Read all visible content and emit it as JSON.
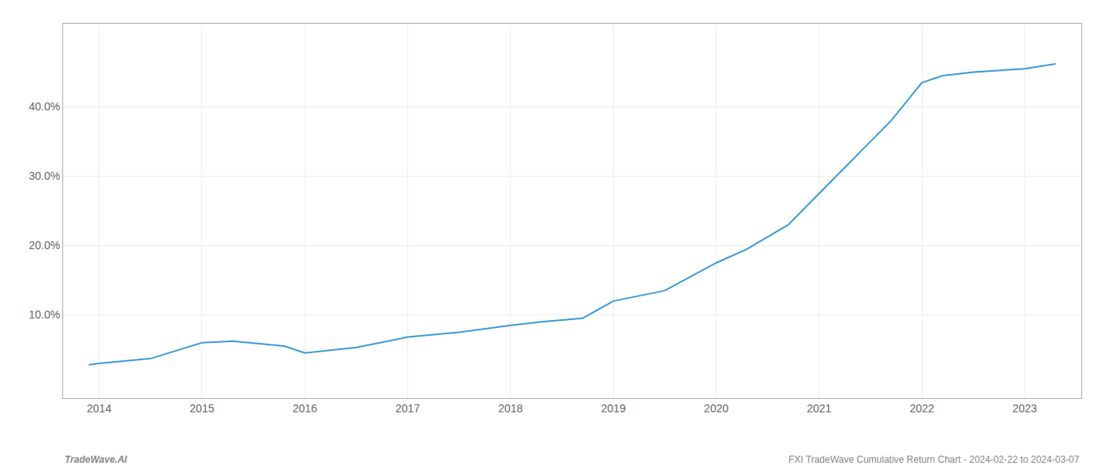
{
  "chart_data": {
    "type": "line",
    "x": [
      2013.9,
      2014.0,
      2014.5,
      2015.0,
      2015.3,
      2015.8,
      2016.0,
      2016.5,
      2017.0,
      2017.5,
      2018.0,
      2018.3,
      2018.7,
      2019.0,
      2019.5,
      2020.0,
      2020.3,
      2020.7,
      2021.0,
      2021.3,
      2021.7,
      2022.0,
      2022.2,
      2022.5,
      2023.0,
      2023.3
    ],
    "values": [
      2.8,
      3.0,
      3.7,
      6.0,
      6.2,
      5.5,
      4.5,
      5.3,
      6.8,
      7.5,
      8.5,
      9.0,
      9.5,
      12.0,
      13.5,
      17.5,
      19.5,
      23.0,
      27.5,
      32.0,
      38.0,
      43.5,
      44.5,
      45.0,
      45.5,
      46.2
    ],
    "color": "#3a9ad9",
    "xlim": [
      2013.65,
      2023.55
    ],
    "ylim": [
      -2,
      52
    ],
    "xticks": [
      2014,
      2015,
      2016,
      2017,
      2018,
      2019,
      2020,
      2021,
      2022,
      2023
    ],
    "yticks": [
      {
        "value": 10.0,
        "label": "10.0%"
      },
      {
        "value": 20.0,
        "label": "20.0%"
      },
      {
        "value": 30.0,
        "label": "30.0%"
      },
      {
        "value": 40.0,
        "label": "40.0%"
      }
    ],
    "grid": true,
    "annotations": [
      "TradeWave.AI",
      "FXI TradeWave Cumulative Return Chart - 2024-02-22 to 2024-03-07"
    ]
  }
}
